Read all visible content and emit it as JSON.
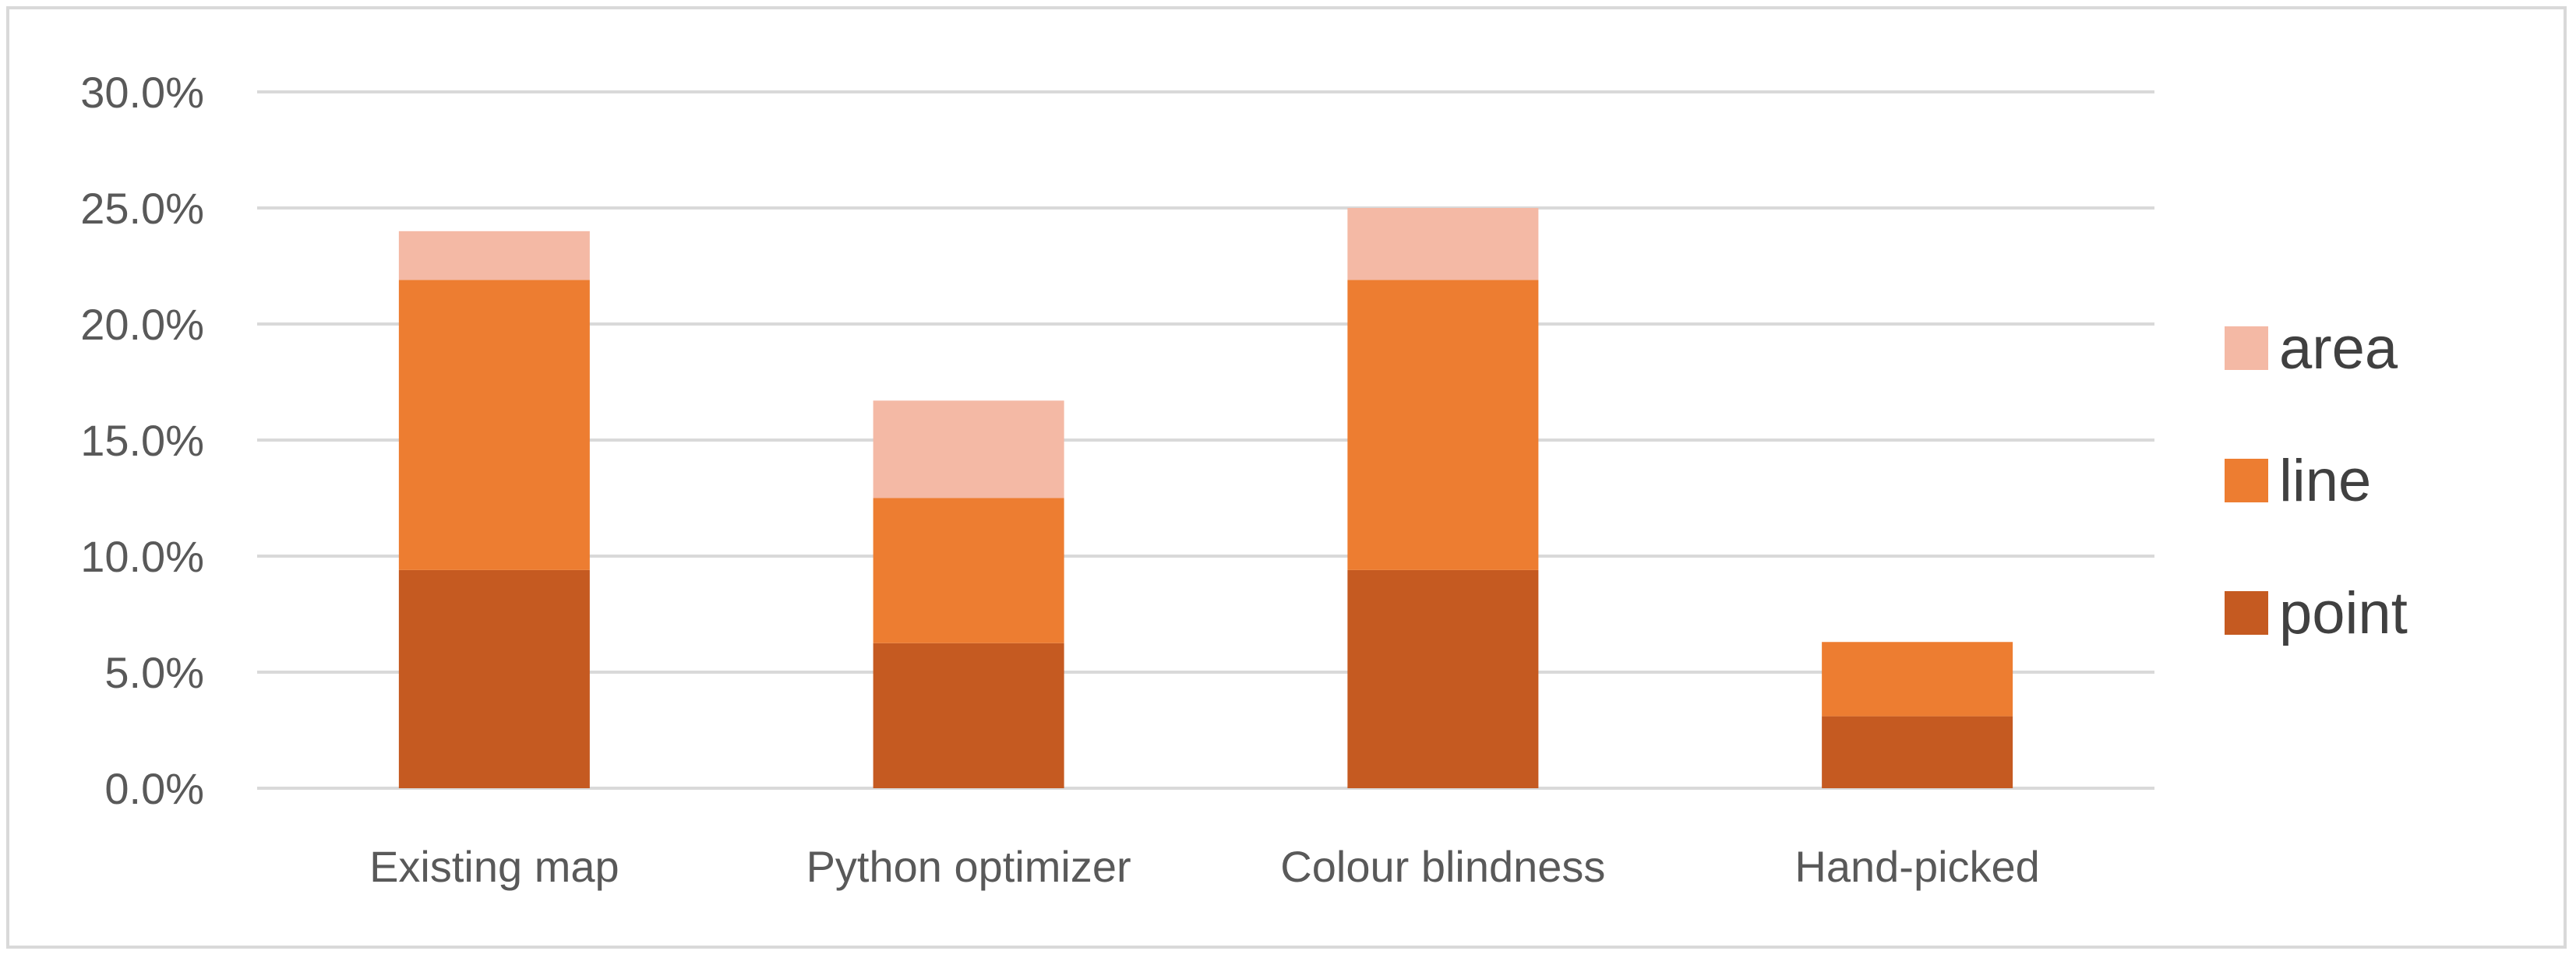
{
  "chart_data": {
    "type": "bar",
    "stacked": true,
    "categories": [
      "Existing map",
      "Python optimizer",
      "Colour blindness",
      "Hand-picked"
    ],
    "series": [
      {
        "name": "point",
        "values": [
          9.4,
          6.25,
          9.4,
          3.1
        ],
        "color": "#c55a21"
      },
      {
        "name": "line",
        "values": [
          12.5,
          6.25,
          12.5,
          3.2
        ],
        "color": "#ed7d31"
      },
      {
        "name": "area",
        "values": [
          2.1,
          4.2,
          3.1,
          0
        ],
        "color": "#f4b9a5"
      }
    ],
    "ylim": [
      0,
      30
    ],
    "yticks": [
      "0.0%",
      "5.0%",
      "10.0%",
      "15.0%",
      "20.0%",
      "25.0%",
      "30.0%"
    ],
    "ytick_values": [
      0,
      5,
      10,
      15,
      20,
      25,
      30
    ],
    "grid": true,
    "gridline_color": "#d9d9d9",
    "legend_position": "right",
    "legend_order": [
      "area",
      "line",
      "point"
    ],
    "title": "",
    "xlabel": "",
    "ylabel": ""
  }
}
